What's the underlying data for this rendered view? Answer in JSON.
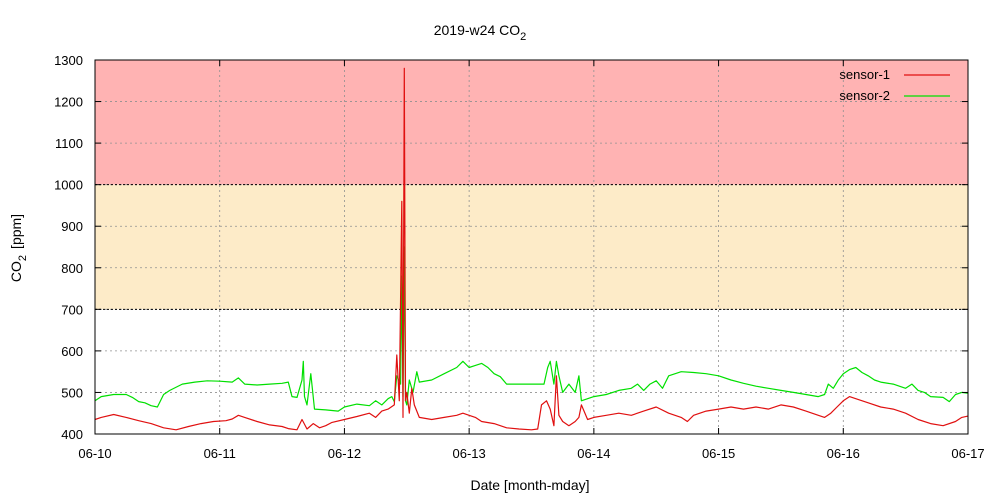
{
  "chart_data": {
    "type": "line",
    "title": "2019-w24 CO",
    "title_subscript": "2",
    "xlabel": "Date [month-mday]",
    "ylabel": "CO",
    "ylabel_subscript": "2",
    "ylabel_unit": "[ppm]",
    "x_ticks": [
      "06-10",
      "06-11",
      "06-12",
      "06-13",
      "06-14",
      "06-15",
      "06-16",
      "06-17"
    ],
    "y_ticks": [
      400,
      500,
      600,
      700,
      800,
      900,
      1000,
      1100,
      1200,
      1300
    ],
    "xlim": [
      0,
      7
    ],
    "ylim": [
      400,
      1300
    ],
    "grid": true,
    "legend_position": "top-right",
    "bands": [
      {
        "from": 1000,
        "to": 1300,
        "color": "#ffb3b3"
      },
      {
        "from": 700,
        "to": 1000,
        "color": "#fdebc8"
      }
    ],
    "series": [
      {
        "name": "sensor-1",
        "color": "#e01010",
        "points": [
          [
            0.0,
            435
          ],
          [
            0.05,
            440
          ],
          [
            0.15,
            447
          ],
          [
            0.25,
            440
          ],
          [
            0.35,
            432
          ],
          [
            0.45,
            425
          ],
          [
            0.55,
            415
          ],
          [
            0.65,
            410
          ],
          [
            0.75,
            418
          ],
          [
            0.85,
            425
          ],
          [
            0.95,
            430
          ],
          [
            1.05,
            432
          ],
          [
            1.1,
            436
          ],
          [
            1.15,
            445
          ],
          [
            1.2,
            440
          ],
          [
            1.3,
            430
          ],
          [
            1.4,
            422
          ],
          [
            1.5,
            418
          ],
          [
            1.55,
            413
          ],
          [
            1.62,
            410
          ],
          [
            1.66,
            435
          ],
          [
            1.7,
            412
          ],
          [
            1.75,
            425
          ],
          [
            1.8,
            415
          ],
          [
            1.85,
            420
          ],
          [
            1.9,
            428
          ],
          [
            2.0,
            435
          ],
          [
            2.1,
            442
          ],
          [
            2.2,
            450
          ],
          [
            2.25,
            440
          ],
          [
            2.3,
            455
          ],
          [
            2.35,
            460
          ],
          [
            2.4,
            470
          ],
          [
            2.42,
            590
          ],
          [
            2.44,
            480
          ],
          [
            2.46,
            960
          ],
          [
            2.47,
            440
          ],
          [
            2.48,
            1280
          ],
          [
            2.49,
            480
          ],
          [
            2.5,
            500
          ],
          [
            2.52,
            450
          ],
          [
            2.54,
            510
          ],
          [
            2.56,
            470
          ],
          [
            2.6,
            440
          ],
          [
            2.7,
            435
          ],
          [
            2.8,
            440
          ],
          [
            2.9,
            445
          ],
          [
            2.95,
            450
          ],
          [
            3.0,
            445
          ],
          [
            3.05,
            440
          ],
          [
            3.1,
            430
          ],
          [
            3.2,
            425
          ],
          [
            3.3,
            415
          ],
          [
            3.4,
            412
          ],
          [
            3.5,
            410
          ],
          [
            3.55,
            412
          ],
          [
            3.58,
            470
          ],
          [
            3.62,
            480
          ],
          [
            3.65,
            460
          ],
          [
            3.68,
            420
          ],
          [
            3.7,
            540
          ],
          [
            3.72,
            445
          ],
          [
            3.75,
            430
          ],
          [
            3.8,
            420
          ],
          [
            3.85,
            430
          ],
          [
            3.88,
            440
          ],
          [
            3.9,
            470
          ],
          [
            3.95,
            435
          ],
          [
            4.0,
            440
          ],
          [
            4.1,
            445
          ],
          [
            4.2,
            450
          ],
          [
            4.3,
            445
          ],
          [
            4.4,
            455
          ],
          [
            4.5,
            465
          ],
          [
            4.6,
            450
          ],
          [
            4.7,
            440
          ],
          [
            4.75,
            430
          ],
          [
            4.8,
            445
          ],
          [
            4.9,
            455
          ],
          [
            5.0,
            460
          ],
          [
            5.1,
            465
          ],
          [
            5.2,
            460
          ],
          [
            5.3,
            465
          ],
          [
            5.4,
            460
          ],
          [
            5.5,
            470
          ],
          [
            5.6,
            465
          ],
          [
            5.7,
            455
          ],
          [
            5.8,
            445
          ],
          [
            5.85,
            440
          ],
          [
            5.9,
            450
          ],
          [
            5.95,
            465
          ],
          [
            6.0,
            480
          ],
          [
            6.05,
            490
          ],
          [
            6.1,
            485
          ],
          [
            6.2,
            475
          ],
          [
            6.3,
            465
          ],
          [
            6.4,
            460
          ],
          [
            6.5,
            450
          ],
          [
            6.6,
            435
          ],
          [
            6.7,
            425
          ],
          [
            6.8,
            420
          ],
          [
            6.9,
            430
          ],
          [
            6.95,
            440
          ],
          [
            7.0,
            443
          ]
        ]
      },
      {
        "name": "sensor-2",
        "color": "#00e000",
        "points": [
          [
            0.0,
            480
          ],
          [
            0.05,
            490
          ],
          [
            0.15,
            495
          ],
          [
            0.25,
            495
          ],
          [
            0.3,
            488
          ],
          [
            0.35,
            478
          ],
          [
            0.4,
            475
          ],
          [
            0.45,
            468
          ],
          [
            0.5,
            465
          ],
          [
            0.55,
            495
          ],
          [
            0.6,
            505
          ],
          [
            0.7,
            520
          ],
          [
            0.8,
            525
          ],
          [
            0.9,
            528
          ],
          [
            1.0,
            527
          ],
          [
            1.1,
            525
          ],
          [
            1.15,
            535
          ],
          [
            1.2,
            520
          ],
          [
            1.3,
            518
          ],
          [
            1.4,
            520
          ],
          [
            1.5,
            522
          ],
          [
            1.55,
            525
          ],
          [
            1.58,
            490
          ],
          [
            1.62,
            488
          ],
          [
            1.66,
            530
          ],
          [
            1.67,
            575
          ],
          [
            1.68,
            490
          ],
          [
            1.7,
            470
          ],
          [
            1.73,
            545
          ],
          [
            1.76,
            460
          ],
          [
            1.85,
            458
          ],
          [
            1.95,
            455
          ],
          [
            2.0,
            465
          ],
          [
            2.1,
            472
          ],
          [
            2.2,
            468
          ],
          [
            2.25,
            480
          ],
          [
            2.3,
            470
          ],
          [
            2.35,
            485
          ],
          [
            2.38,
            490
          ],
          [
            2.4,
            478
          ],
          [
            2.42,
            540
          ],
          [
            2.45,
            520
          ],
          [
            2.46,
            780
          ],
          [
            2.47,
            490
          ],
          [
            2.48,
            850
          ],
          [
            2.49,
            480
          ],
          [
            2.5,
            470
          ],
          [
            2.52,
            530
          ],
          [
            2.55,
            500
          ],
          [
            2.58,
            550
          ],
          [
            2.6,
            525
          ],
          [
            2.7,
            530
          ],
          [
            2.8,
            545
          ],
          [
            2.9,
            560
          ],
          [
            2.95,
            575
          ],
          [
            3.0,
            560
          ],
          [
            3.05,
            565
          ],
          [
            3.1,
            570
          ],
          [
            3.15,
            560
          ],
          [
            3.2,
            545
          ],
          [
            3.25,
            538
          ],
          [
            3.3,
            520
          ],
          [
            3.35,
            520
          ],
          [
            3.4,
            520
          ],
          [
            3.5,
            520
          ],
          [
            3.6,
            520
          ],
          [
            3.63,
            560
          ],
          [
            3.65,
            575
          ],
          [
            3.68,
            520
          ],
          [
            3.7,
            575
          ],
          [
            3.72,
            540
          ],
          [
            3.75,
            500
          ],
          [
            3.8,
            520
          ],
          [
            3.85,
            500
          ],
          [
            3.88,
            540
          ],
          [
            3.9,
            480
          ],
          [
            3.95,
            485
          ],
          [
            4.0,
            490
          ],
          [
            4.1,
            495
          ],
          [
            4.2,
            505
          ],
          [
            4.3,
            510
          ],
          [
            4.35,
            520
          ],
          [
            4.4,
            505
          ],
          [
            4.45,
            520
          ],
          [
            4.5,
            528
          ],
          [
            4.55,
            510
          ],
          [
            4.6,
            540
          ],
          [
            4.7,
            550
          ],
          [
            4.8,
            548
          ],
          [
            4.9,
            545
          ],
          [
            5.0,
            540
          ],
          [
            5.1,
            530
          ],
          [
            5.2,
            522
          ],
          [
            5.3,
            515
          ],
          [
            5.4,
            510
          ],
          [
            5.5,
            505
          ],
          [
            5.6,
            500
          ],
          [
            5.7,
            495
          ],
          [
            5.8,
            490
          ],
          [
            5.85,
            495
          ],
          [
            5.88,
            520
          ],
          [
            5.92,
            510
          ],
          [
            5.96,
            530
          ],
          [
            6.0,
            545
          ],
          [
            6.05,
            555
          ],
          [
            6.1,
            560
          ],
          [
            6.15,
            548
          ],
          [
            6.2,
            540
          ],
          [
            6.25,
            530
          ],
          [
            6.3,
            525
          ],
          [
            6.4,
            520
          ],
          [
            6.5,
            510
          ],
          [
            6.55,
            520
          ],
          [
            6.6,
            505
          ],
          [
            6.65,
            500
          ],
          [
            6.7,
            490
          ],
          [
            6.8,
            488
          ],
          [
            6.85,
            478
          ],
          [
            6.9,
            495
          ],
          [
            6.95,
            500
          ],
          [
            7.0,
            498
          ]
        ]
      }
    ]
  }
}
